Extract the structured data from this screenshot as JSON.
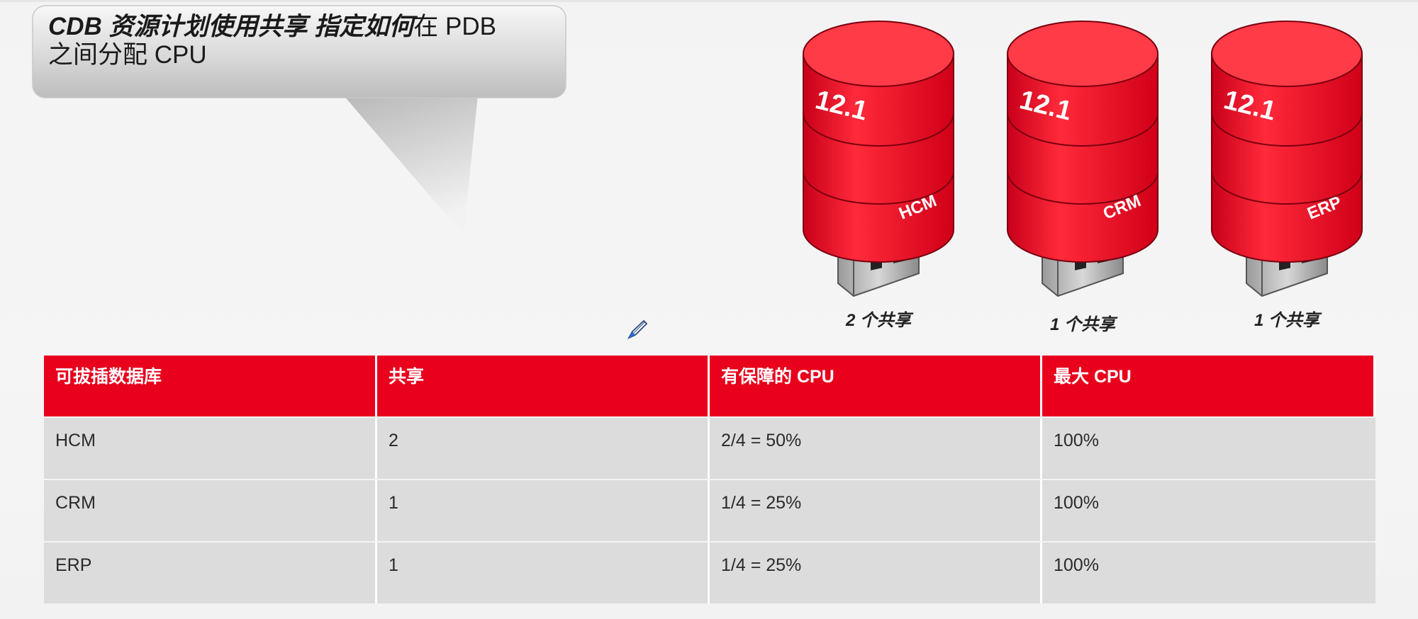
{
  "callout": {
    "bold_part": "CDB 资源计划使用共享 指定如何",
    "rest_line1": "在 PDB",
    "line2": "之间分配 CPU"
  },
  "databases": [
    {
      "version": "12.1",
      "name": "HCM",
      "caption": "2 个共享"
    },
    {
      "version": "12.1",
      "name": "CRM",
      "caption": "1 个共享"
    },
    {
      "version": "12.1",
      "name": "ERP",
      "caption": "1 个共享"
    }
  ],
  "table": {
    "headers": [
      "可拔插数据库",
      "共享",
      "有保障的 CPU",
      "最大 CPU"
    ],
    "rows": [
      [
        "HCM",
        "2",
        "2/4 = 50%",
        "100%"
      ],
      [
        "CRM",
        "1",
        "1/4 = 25%",
        "100%"
      ],
      [
        "ERP",
        "1",
        "1/4 = 25%",
        "100%"
      ]
    ]
  },
  "colors": {
    "accent_red": "#e8001c",
    "row_gray": "#dcdcdc"
  },
  "icons": [
    "pen-cursor-icon"
  ]
}
